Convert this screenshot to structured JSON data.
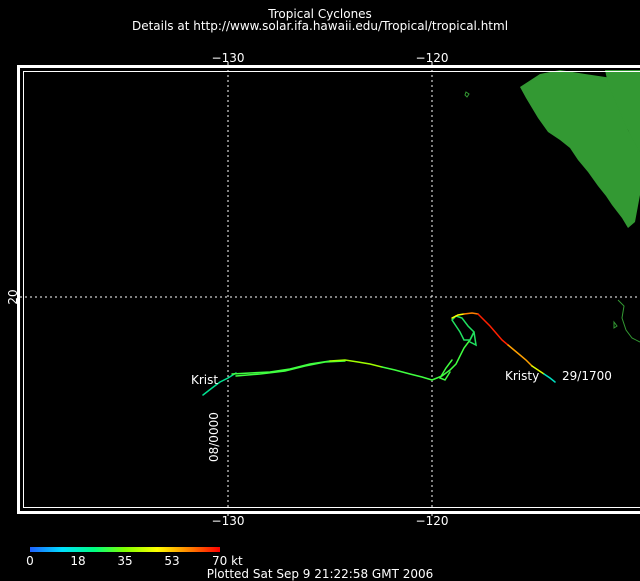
{
  "header": {
    "title": "Tropical Cyclones",
    "details": "Details at http://www.solar.ifa.hawaii.edu/Tropical/tropical.html"
  },
  "map": {
    "lon_ticks_top": [
      "−130",
      "−120"
    ],
    "lon_ticks_bottom": [
      "−130",
      "−120"
    ],
    "lat_ticks": [
      "20"
    ],
    "land_color": "#339933",
    "frame_color": "#ffffff",
    "grid_color": "#ffffff",
    "background_color": "#000000"
  },
  "storm": {
    "name_start": "Krist",
    "name_end": "Kristy",
    "start_time": "08/0000",
    "end_time": "29/1700"
  },
  "legend": {
    "ticks": [
      "0",
      "18",
      "35",
      "53",
      "70 kt"
    ],
    "colors": [
      "#2060ff",
      "#00e0ff",
      "#00ff80",
      "#80ff00",
      "#ffff00",
      "#ff8000",
      "#ff0000"
    ]
  },
  "footer": {
    "plotted": "Plotted Sat Sep  9 21:22:58 GMT 2006"
  }
}
